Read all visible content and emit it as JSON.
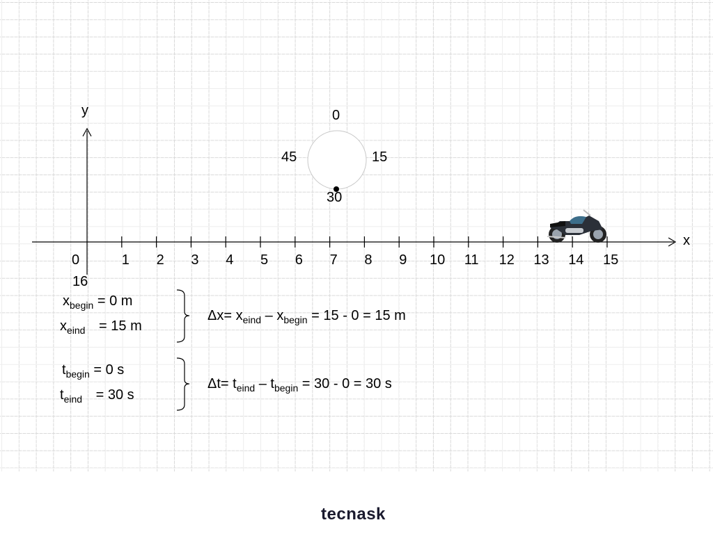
{
  "axes": {
    "x_label": "x",
    "y_label": "y",
    "ticks": [
      "0",
      "1",
      "2",
      "3",
      "4",
      "5",
      "6",
      "7",
      "8",
      "9",
      "10",
      "11",
      "12",
      "13",
      "14",
      "15"
    ],
    "extra_label": "16"
  },
  "clock": {
    "top": "0",
    "right": "15",
    "bottom": "30",
    "left": "45"
  },
  "position": {
    "begin": {
      "sym": "x",
      "sub": "begin",
      "value": "=   0 m"
    },
    "end": {
      "sym": "x",
      "sub": "eind",
      "value": "= 15 m"
    },
    "result": {
      "lead": "Δx= x",
      "sub1": "eind",
      "mid": " – x",
      "sub2": "begin",
      "tail": " = 15 - 0 = 15 m"
    }
  },
  "time": {
    "begin": {
      "sym": "t",
      "sub": "begin",
      "value": "=   0 s"
    },
    "end": {
      "sym": "t",
      "sub": "eind",
      "value": "= 30 s"
    },
    "result": {
      "lead": "Δt= t",
      "sub1": "eind",
      "mid": " – t",
      "sub2": "begin",
      "tail": " = 30 - 0 = 30 s"
    }
  },
  "icons": {
    "vehicle": "motorcycle-icon"
  },
  "brand": "tecnask",
  "colors": {
    "ink": "#000000",
    "grid": "#d9d9d9",
    "brand": "#1a1a2e"
  }
}
